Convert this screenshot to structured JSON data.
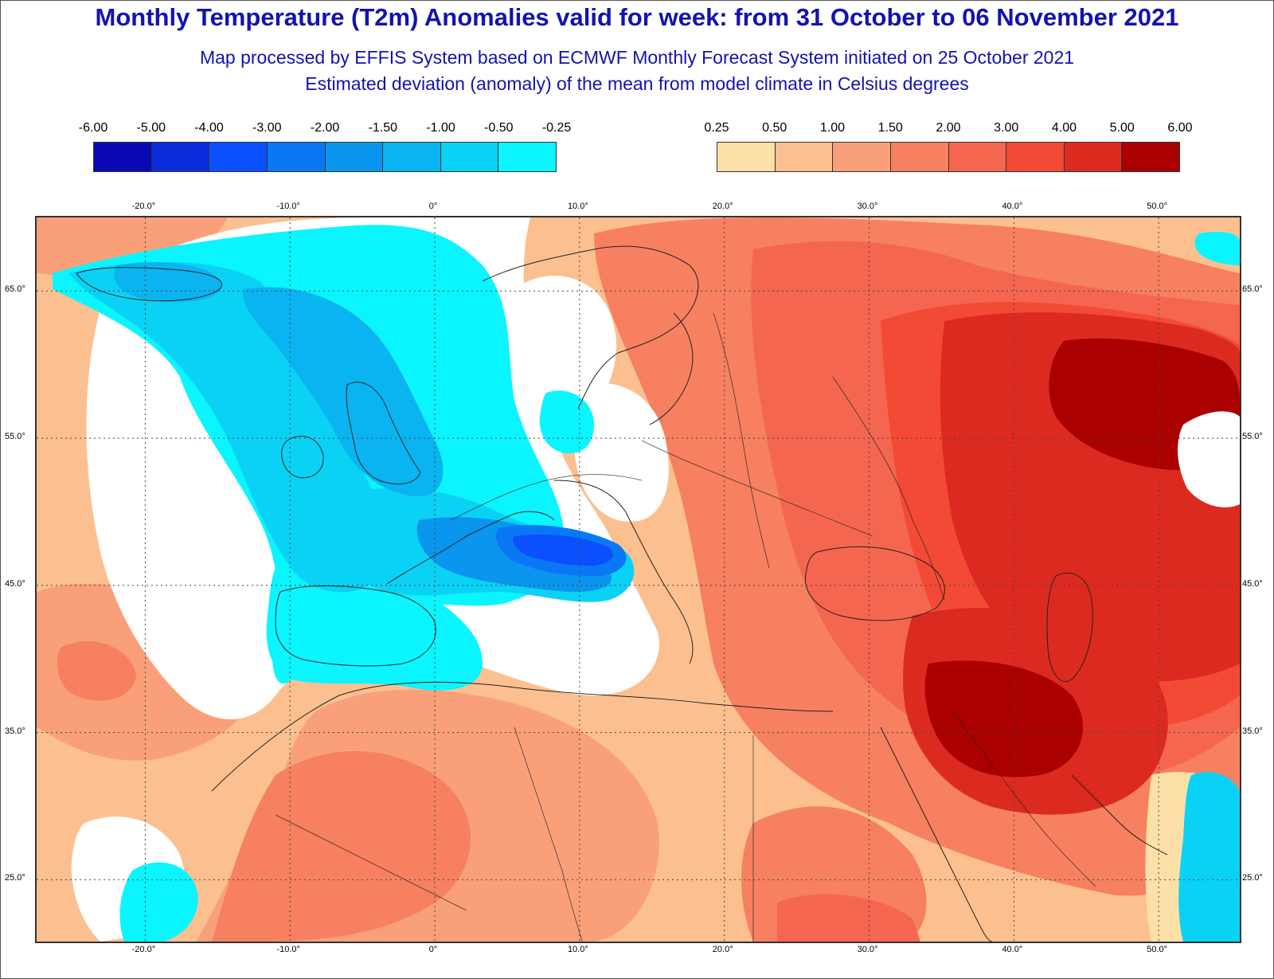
{
  "title": "Monthly Temperature (T2m) Anomalies valid for week: from 31 October to 06 November 2021",
  "subtitle1": "Map processed by EFFIS System based on ECMWF Monthly Forecast System initiated on 25 October 2021",
  "subtitle2": "Estimated deviation (anomaly) of the mean from model climate in Celsius degrees",
  "legend_cold": {
    "labels": [
      "-6.00",
      "-5.00",
      "-4.00",
      "-3.00",
      "-2.00",
      "-1.50",
      "-1.00",
      "-0.50",
      "-0.25"
    ],
    "colors": [
      "#0a0ab4",
      "#0a2ddc",
      "#0a50ff",
      "#0a78f5",
      "#0a96ee",
      "#0ab4f0",
      "#0ad2f5",
      "#0af5ff"
    ]
  },
  "legend_warm": {
    "labels": [
      "0.25",
      "0.50",
      "1.00",
      "1.50",
      "2.00",
      "3.00",
      "4.00",
      "5.00",
      "6.00"
    ],
    "colors": [
      "#fde0a8",
      "#fcc090",
      "#f9a07a",
      "#f68060",
      "#f56650",
      "#f34a36",
      "#dd2a20",
      "#aa0000"
    ]
  },
  "axes": {
    "lon_ticks": [
      "-20.0°",
      "-10.0°",
      "0°",
      "10.0°",
      "20.0°",
      "30.0°",
      "40.0°",
      "50.0°"
    ],
    "lat_ticks": [
      "65.0°",
      "55.0°",
      "45.0°",
      "35.0°",
      "25.0°"
    ]
  },
  "palette": {
    "frame": "#555555",
    "title_color": "#1313b0",
    "coast": "#222222",
    "grid": "#444444"
  }
}
